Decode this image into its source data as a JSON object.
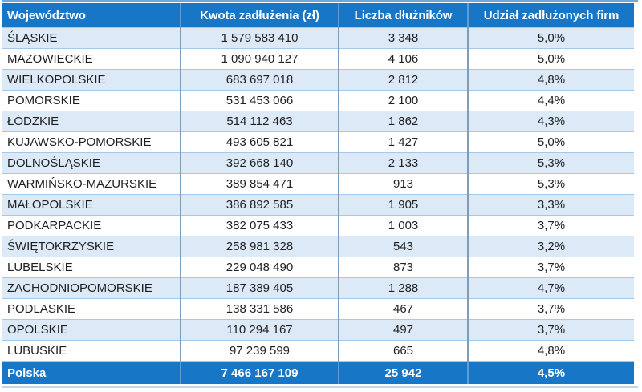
{
  "table": {
    "columns": [
      {
        "label": "Województwo"
      },
      {
        "label": "Kwota zadłużenia (zł)"
      },
      {
        "label": "Liczba dłużników"
      },
      {
        "label": "Udział zadłużonych firm"
      }
    ],
    "rows": [
      {
        "voivodeship": "ŚLĄSKIE",
        "debt_amount": "1 579 583 410",
        "debtors_count": "3 348",
        "indebted_share": "5,0%"
      },
      {
        "voivodeship": "MAZOWIECKIE",
        "debt_amount": "1 090 940 127",
        "debtors_count": "4 106",
        "indebted_share": "5,0%"
      },
      {
        "voivodeship": "WIELKOPOLSKIE",
        "debt_amount": "683 697 018",
        "debtors_count": "2 812",
        "indebted_share": "4,8%"
      },
      {
        "voivodeship": "POMORSKIE",
        "debt_amount": "531 453 066",
        "debtors_count": "2 100",
        "indebted_share": "4,4%"
      },
      {
        "voivodeship": "ŁÓDZKIE",
        "debt_amount": "514 112 463",
        "debtors_count": "1 862",
        "indebted_share": "4,3%"
      },
      {
        "voivodeship": "KUJAWSKO-POMORSKIE",
        "debt_amount": "493 605 821",
        "debtors_count": "1 427",
        "indebted_share": "5,0%"
      },
      {
        "voivodeship": "DOLNOŚLĄSKIE",
        "debt_amount": "392 668 140",
        "debtors_count": "2 133",
        "indebted_share": "5,3%"
      },
      {
        "voivodeship": "WARMIŃSKO-MAZURSKIE",
        "debt_amount": "389 854 471",
        "debtors_count": "913",
        "indebted_share": "5,3%"
      },
      {
        "voivodeship": "MAŁOPOLSKIE",
        "debt_amount": "386 892 585",
        "debtors_count": "1 905",
        "indebted_share": "3,3%"
      },
      {
        "voivodeship": "PODKARPACKIE",
        "debt_amount": "382 075 433",
        "debtors_count": "1 003",
        "indebted_share": "3,7%"
      },
      {
        "voivodeship": "ŚWIĘTOKRZYSKIE",
        "debt_amount": "258 981 328",
        "debtors_count": "543",
        "indebted_share": "3,2%"
      },
      {
        "voivodeship": "LUBELSKIE",
        "debt_amount": "229 048 490",
        "debtors_count": "873",
        "indebted_share": "3,7%"
      },
      {
        "voivodeship": "ZACHODNIOPOMORSKIE",
        "debt_amount": "187 389 405",
        "debtors_count": "1 288",
        "indebted_share": "4,7%"
      },
      {
        "voivodeship": "PODLASKIE",
        "debt_amount": "138 331 586",
        "debtors_count": "467",
        "indebted_share": "3,7%"
      },
      {
        "voivodeship": "OPOLSKIE",
        "debt_amount": "110 294 167",
        "debtors_count": "497",
        "indebted_share": "3,7%"
      },
      {
        "voivodeship": "LUBUSKIE",
        "debt_amount": "97 239 599",
        "debtors_count": "665",
        "indebted_share": "4,8%"
      }
    ],
    "footer": {
      "voivodeship": "Polska",
      "debt_amount": "7 466 167 109",
      "debtors_count": "25 942",
      "indebted_share": "4,5%"
    }
  },
  "colors": {
    "header_bg": "#1777C6",
    "band_row_bg": "#DCE9F6",
    "row_border": "#A6C9E8",
    "column_border": "#7F9DB9",
    "header_column_border": "#5B9FD9",
    "header_text": "#FFFFFF",
    "body_text": "#1F1F1F"
  },
  "chart_data": {
    "type": "table",
    "title": "",
    "columns": [
      "Województwo",
      "Kwota zadłużenia (zł)",
      "Liczba dłużników",
      "Udział zadłużonych firm"
    ],
    "rows": [
      [
        "ŚLĄSKIE",
        1579583410,
        3348,
        "5,0%"
      ],
      [
        "MAZOWIECKIE",
        1090940127,
        4106,
        "5,0%"
      ],
      [
        "WIELKOPOLSKIE",
        683697018,
        2812,
        "4,8%"
      ],
      [
        "POMORSKIE",
        531453066,
        2100,
        "4,4%"
      ],
      [
        "ŁÓDZKIE",
        514112463,
        1862,
        "4,3%"
      ],
      [
        "KUJAWSKO-POMORSKIE",
        493605821,
        1427,
        "5,0%"
      ],
      [
        "DOLNOŚLĄSKIE",
        392668140,
        2133,
        "5,3%"
      ],
      [
        "WARMIŃSKO-MAZURSKIE",
        389854471,
        913,
        "5,3%"
      ],
      [
        "MAŁOPOLSKIE",
        386892585,
        1905,
        "3,3%"
      ],
      [
        "PODKARPACKIE",
        382075433,
        1003,
        "3,7%"
      ],
      [
        "ŚWIĘTOKRZYSKIE",
        258981328,
        543,
        "3,2%"
      ],
      [
        "LUBELSKIE",
        229048490,
        873,
        "3,7%"
      ],
      [
        "ZACHODNIOPOMORSKIE",
        187389405,
        1288,
        "4,7%"
      ],
      [
        "PODLASKIE",
        138331586,
        467,
        "3,7%"
      ],
      [
        "OPOLSKIE",
        110294167,
        497,
        "3,7%"
      ],
      [
        "LUBUSKIE",
        97239599,
        665,
        "4,8%"
      ]
    ],
    "total_row": [
      "Polska",
      7466167109,
      25942,
      "4,5%"
    ]
  }
}
